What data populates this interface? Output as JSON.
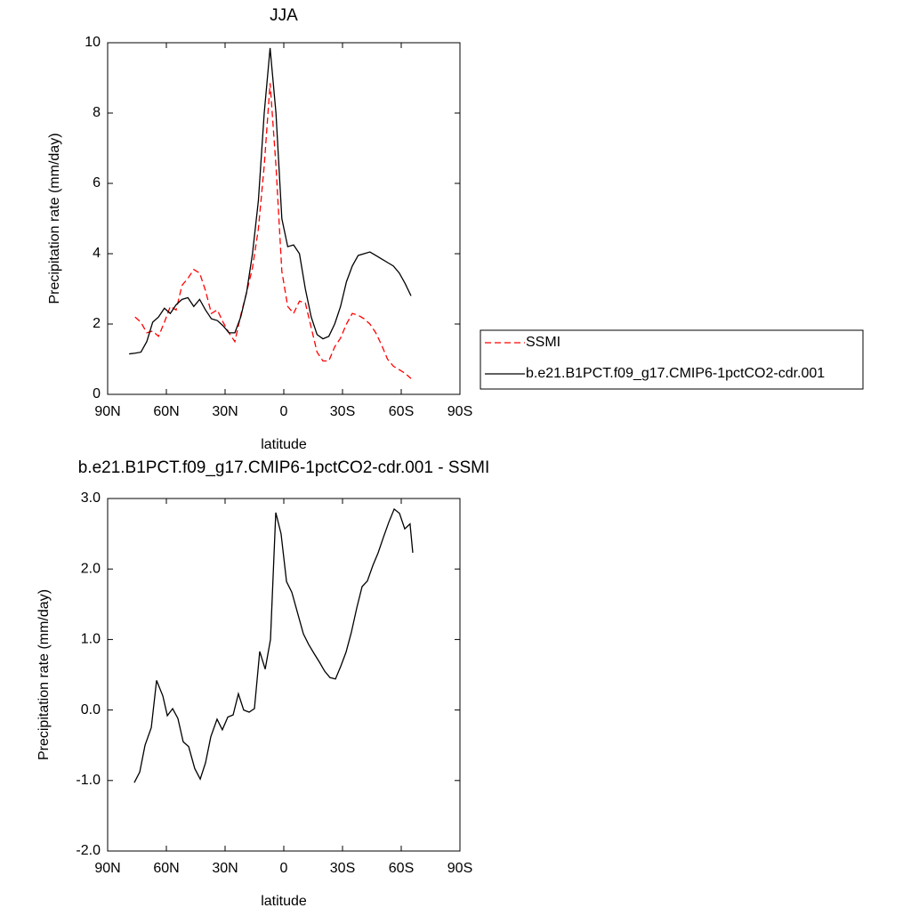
{
  "chart_data": [
    {
      "type": "line",
      "title": "JJA",
      "xlabel": "latitude",
      "ylabel": "Precipitation rate (mm/day)",
      "x": [
        79,
        76,
        73,
        70,
        67,
        64,
        61,
        58,
        55,
        52,
        49,
        46,
        43,
        40,
        37,
        34,
        31,
        28,
        25,
        22,
        19,
        16,
        13,
        10,
        7,
        4,
        1,
        -2,
        -5,
        -8,
        -11,
        -14,
        -17,
        -20,
        -23,
        -26,
        -29,
        -32,
        -35,
        -38,
        -41,
        -44,
        -47,
        -50,
        -53,
        -56,
        -59,
        -62,
        -65
      ],
      "series": [
        {
          "name": "SSMI",
          "color": "#ff0000",
          "dashed": true,
          "values": [
            null,
            2.2,
            2.05,
            1.75,
            1.8,
            1.65,
            2.05,
            2.5,
            2.4,
            3.1,
            3.3,
            3.55,
            3.45,
            2.95,
            2.3,
            2.4,
            2.05,
            1.75,
            1.5,
            2.25,
            2.9,
            3.6,
            4.7,
            6.5,
            8.85,
            6.5,
            3.5,
            2.5,
            2.3,
            2.65,
            2.6,
            1.9,
            1.2,
            0.95,
            0.95,
            1.35,
            1.6,
            2.0,
            2.3,
            2.25,
            2.15,
            2.0,
            1.75,
            1.4,
            1.0,
            0.8,
            0.7,
            0.6,
            0.45
          ]
        },
        {
          "name": "b.e21.B1PCT.f09_g17.CMIP6-1pctCO2-cdr.001",
          "color": "#000000",
          "dashed": false,
          "values": [
            1.15,
            1.17,
            1.2,
            1.5,
            2.05,
            2.2,
            2.45,
            2.3,
            2.55,
            2.7,
            2.75,
            2.5,
            2.7,
            2.4,
            2.15,
            2.1,
            1.95,
            1.75,
            1.75,
            2.2,
            2.9,
            4.0,
            5.5,
            8.0,
            9.85,
            8.0,
            5.0,
            4.2,
            4.25,
            4.0,
            3.0,
            2.2,
            1.7,
            1.58,
            1.65,
            2.0,
            2.5,
            3.2,
            3.65,
            3.95,
            4.0,
            4.05,
            3.95,
            3.85,
            3.75,
            3.65,
            3.45,
            3.15,
            2.8
          ]
        }
      ],
      "xlim": [
        90,
        -90
      ],
      "xticks": [
        {
          "value": 90,
          "label": "90N"
        },
        {
          "value": 60,
          "label": "60N"
        },
        {
          "value": 30,
          "label": "30N"
        },
        0,
        {
          "value": -30,
          "label": "30S"
        },
        {
          "value": -60,
          "label": "60S"
        },
        {
          "value": -90,
          "label": "90S"
        }
      ],
      "ylim": [
        0,
        10
      ],
      "yticks": [
        0,
        2,
        4,
        6,
        8,
        10
      ],
      "legend": "right"
    },
    {
      "type": "line",
      "title": "b.e21.B1PCT.f09_g17.CMIP6-1pctCO2-cdr.001 - SSMI",
      "xlabel": "latitude",
      "ylabel": "Precipitation rate (mm/day)",
      "x": [
        76.4,
        73.6,
        70.9,
        67.7,
        65,
        61.8,
        59.5,
        56.8,
        54.1,
        51.4,
        48.6,
        45.5,
        42.7,
        40,
        37.3,
        34.1,
        31.4,
        28.6,
        25.9,
        23.2,
        20.5,
        17.7,
        15,
        12.3,
        9.5,
        6.8,
        4.1,
        1.4,
        -1.4,
        -4.1,
        -6.8,
        -10,
        -12.7,
        -15.5,
        -18.2,
        -20.9,
        -23.6,
        -26.4,
        -29.1,
        -31.8,
        -34.5,
        -37.3,
        -40,
        -42.7,
        -45.5,
        -48.2,
        -50.9,
        -53.6,
        -56.4,
        -59.1,
        -61.8,
        -64.5,
        -65.9
      ],
      "series": [
        {
          "color": "#000000",
          "dashed": false,
          "values": [
            -1.03,
            -0.88,
            -0.5,
            -0.25,
            0.42,
            0.2,
            -0.08,
            0.02,
            -0.12,
            -0.45,
            -0.52,
            -0.83,
            -0.98,
            -0.75,
            -0.38,
            -0.13,
            -0.28,
            -0.1,
            -0.07,
            0.23,
            0.0,
            -0.03,
            0.02,
            0.83,
            0.58,
            1.0,
            2.8,
            2.5,
            1.82,
            1.67,
            1.4,
            1.08,
            0.93,
            0.8,
            0.68,
            0.55,
            0.46,
            0.44,
            0.62,
            0.82,
            1.1,
            1.45,
            1.75,
            1.83,
            2.05,
            2.23,
            2.45,
            2.66,
            2.85,
            2.79,
            2.57,
            2.64,
            2.23
          ]
        }
      ],
      "xlim": [
        90,
        -90
      ],
      "xticks": [
        {
          "value": 90,
          "label": "90N"
        },
        {
          "value": 60,
          "label": "60N"
        },
        {
          "value": 30,
          "label": "30N"
        },
        0,
        {
          "value": -30,
          "label": "30S"
        },
        {
          "value": -60,
          "label": "60S"
        },
        {
          "value": -90,
          "label": "90S"
        }
      ],
      "ylim": [
        -2,
        3
      ],
      "yticks": [
        {
          "value": -2,
          "label": "-2.0"
        },
        {
          "value": -1,
          "label": "-1.0"
        },
        {
          "value": 0,
          "label": "0.0"
        },
        {
          "value": 1,
          "label": "1.0"
        },
        {
          "value": 2,
          "label": "2.0"
        },
        {
          "value": 3,
          "label": "3.0"
        }
      ]
    }
  ]
}
